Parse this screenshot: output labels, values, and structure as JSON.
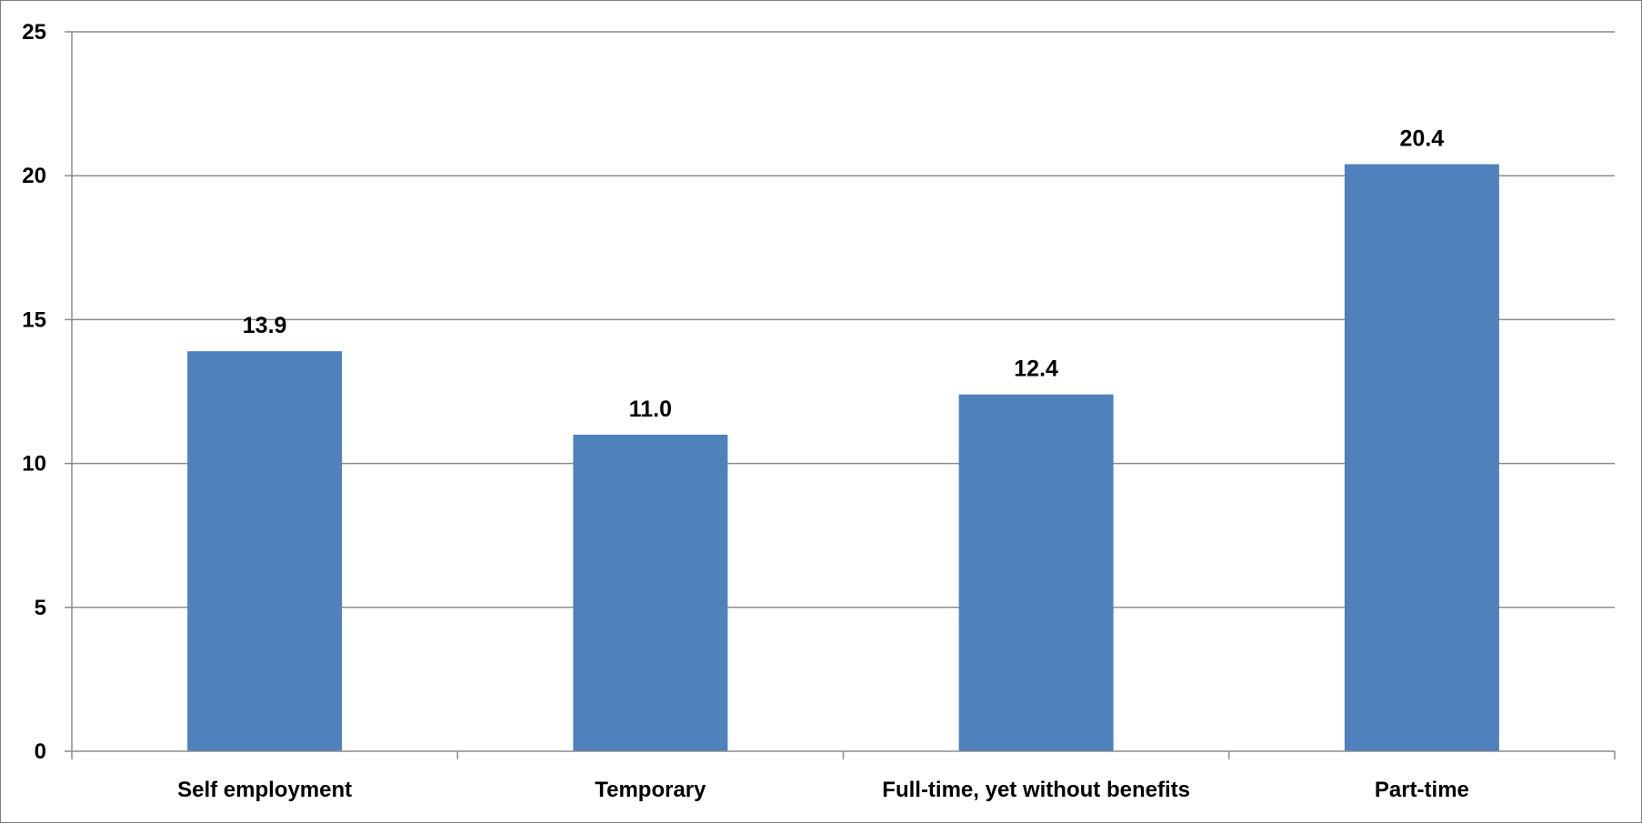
{
  "chart_data": {
    "type": "bar",
    "categories": [
      "Self employment",
      "Temporary",
      "Full-time, yet without benefits",
      "Part-time"
    ],
    "values": [
      13.9,
      11.0,
      12.4,
      20.4
    ],
    "data_labels": [
      "13.9",
      "11.0",
      "12.4",
      "20.4"
    ],
    "title": "",
    "xlabel": "",
    "ylabel": "",
    "ylim": [
      0,
      25
    ],
    "yticks": [
      0,
      5,
      10,
      15,
      20,
      25
    ],
    "ytick_labels": [
      "0",
      "5",
      "10",
      "15",
      "20",
      "25"
    ],
    "grid": true,
    "legend": "none",
    "colors": {
      "bar": "#4F81BD",
      "grid": "#8c8c8c",
      "axis": "#8c8c8c"
    }
  }
}
